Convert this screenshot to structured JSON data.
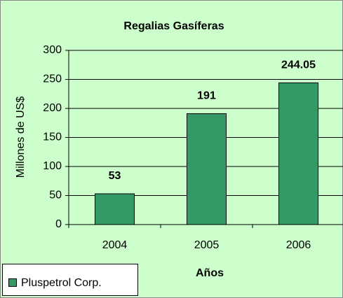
{
  "chart_data": {
    "type": "bar",
    "title": "Regalias Gasíferas",
    "x_label": "Años",
    "y_label": "Millones de US$",
    "categories": [
      "2004",
      "2005",
      "2006"
    ],
    "series": [
      {
        "name": "Pluspetrol Corp.",
        "color": "#339966",
        "values": [
          53,
          191,
          244.05
        ]
      }
    ],
    "ylim": [
      0,
      300
    ],
    "yticks": [
      0,
      50,
      100,
      150,
      200,
      250,
      300
    ],
    "grid": true,
    "legend": "bottom-left"
  }
}
